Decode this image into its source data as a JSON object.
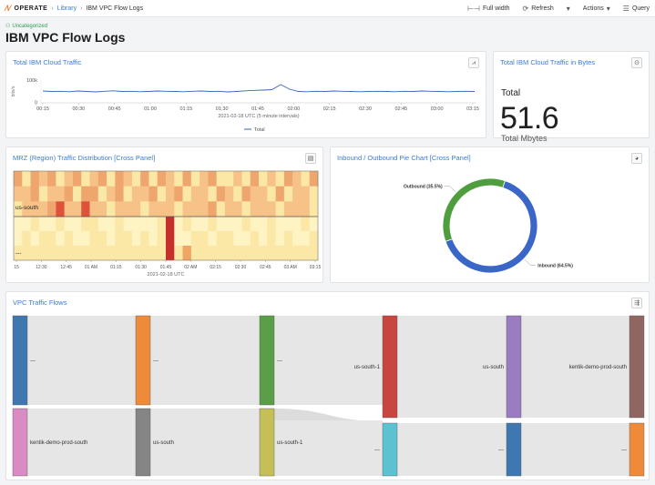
{
  "topbar": {
    "app": "OPERATE",
    "breadcrumb": [
      "Library",
      "IBM VPC Flow Logs"
    ],
    "actions": {
      "full_width": "Full width",
      "refresh": "Refresh",
      "actions": "Actions",
      "query": "Query"
    }
  },
  "header": {
    "category": "Uncategorized",
    "title": "IBM VPC Flow Logs"
  },
  "panels": {
    "traffic": {
      "title": "Total IBM Cloud Traffic"
    },
    "bytes": {
      "title": "Total IBM Cloud Traffic in Bytes",
      "label": "Total",
      "value": "51.6",
      "unit": "Total Mbytes"
    },
    "mrz": {
      "title": "MRZ (Region) Traffic Distribution [Cross Panel]"
    },
    "pie": {
      "title": "Inbound / Outbound Pie Chart [Cross Panel]"
    },
    "flows": {
      "title": "VPC Traffic Flows"
    }
  },
  "chart_data": [
    {
      "type": "line",
      "title": "Total IBM Cloud Traffic",
      "ylabel": "bits/s",
      "xlabel": "2021-02-18 UTC (5 minute intervals)",
      "ylim": [
        0,
        100000
      ],
      "yticks": [
        "100k",
        "0"
      ],
      "xticks": [
        "00:15",
        "00:30",
        "00:45",
        "01:00",
        "01:15",
        "01:30",
        "01:45",
        "02:00",
        "02:15",
        "02:30",
        "02:45",
        "03:00",
        "03:15"
      ],
      "series": [
        {
          "name": "Total",
          "color": "#3a66b8",
          "values": [
            52000,
            50000,
            51000,
            49000,
            52000,
            50000,
            48000,
            51000,
            53000,
            50000,
            51000,
            49000,
            50000,
            52000,
            51000,
            50000,
            49000,
            51000,
            52000,
            50000,
            51000,
            48000,
            50000,
            53000,
            55000,
            56000,
            58000,
            80000,
            60000,
            50000,
            49000,
            51000,
            50000,
            52000,
            51000,
            50000,
            49000,
            50000,
            51000,
            50000,
            49000,
            51000,
            50000,
            52000,
            51000,
            50000,
            49000,
            50000,
            51000,
            50000
          ]
        }
      ]
    },
    {
      "type": "heatmap",
      "title": "MRZ (Region) Traffic Distribution [Cross Panel]",
      "xlabel": "2021-02-18 UTC",
      "rows": [
        "us-south",
        "---"
      ],
      "xticks": [
        "15",
        "12:30",
        "12:45",
        "01 AM",
        "01:15",
        "01:30",
        "01:45",
        "02 AM",
        "02:15",
        "02:30",
        "02:45",
        "03 AM",
        "03:15"
      ]
    },
    {
      "type": "pie",
      "title": "Inbound / Outbound Pie Chart [Cross Panel]",
      "slices": [
        {
          "label": "Inbound (64.5%)",
          "value": 64.5,
          "color": "#3a66c8"
        },
        {
          "label": "Outbound (35.5%)",
          "value": 35.5,
          "color": "#4f9e3e"
        }
      ]
    },
    {
      "type": "sankey",
      "title": "VPC Traffic Flows",
      "columns": [
        [
          {
            "label": "---",
            "color": "#3f78b0"
          },
          {
            "label": "kentik-demo-prod-south",
            "color": "#d98cc4"
          }
        ],
        [
          {
            "label": "---",
            "color": "#ee8a3a"
          },
          {
            "label": "us-south",
            "color": "#858585"
          }
        ],
        [
          {
            "label": "---",
            "color": "#5a9e47"
          },
          {
            "label": "us-south-1",
            "color": "#c4bf57"
          }
        ],
        [
          {
            "label": "us-south-1",
            "color": "#c94640"
          },
          {
            "label": "---",
            "color": "#5cc2d1"
          }
        ],
        [
          {
            "label": "us-south",
            "color": "#9a7cc0"
          },
          {
            "label": "---",
            "color": "#3f78b0"
          }
        ],
        [
          {
            "label": "kentik-demo-prod-south",
            "color": "#8f6660"
          },
          {
            "label": "---",
            "color": "#ee8a3a"
          }
        ]
      ]
    }
  ]
}
